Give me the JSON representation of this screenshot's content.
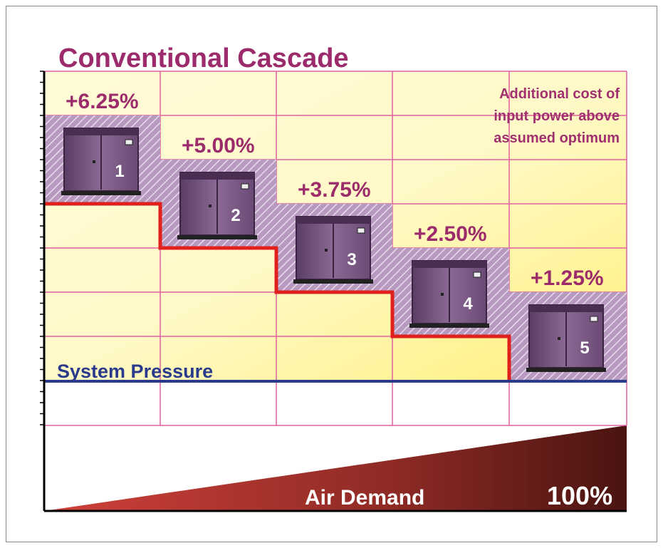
{
  "title": "Conventional Cascade",
  "annotation": [
    "Additional cost of",
    "input power above",
    "assumed optimum"
  ],
  "compressors": [
    {
      "number": "1",
      "cost": "+6.25%"
    },
    {
      "number": "2",
      "cost": "+5.00%"
    },
    {
      "number": "3",
      "cost": "+3.75%"
    },
    {
      "number": "4",
      "cost": "+2.50%"
    },
    {
      "number": "5",
      "cost": "+1.25%"
    }
  ],
  "pressure_label": "System Pressure",
  "demand_label": "Air Demand",
  "demand_max": "100%"
}
